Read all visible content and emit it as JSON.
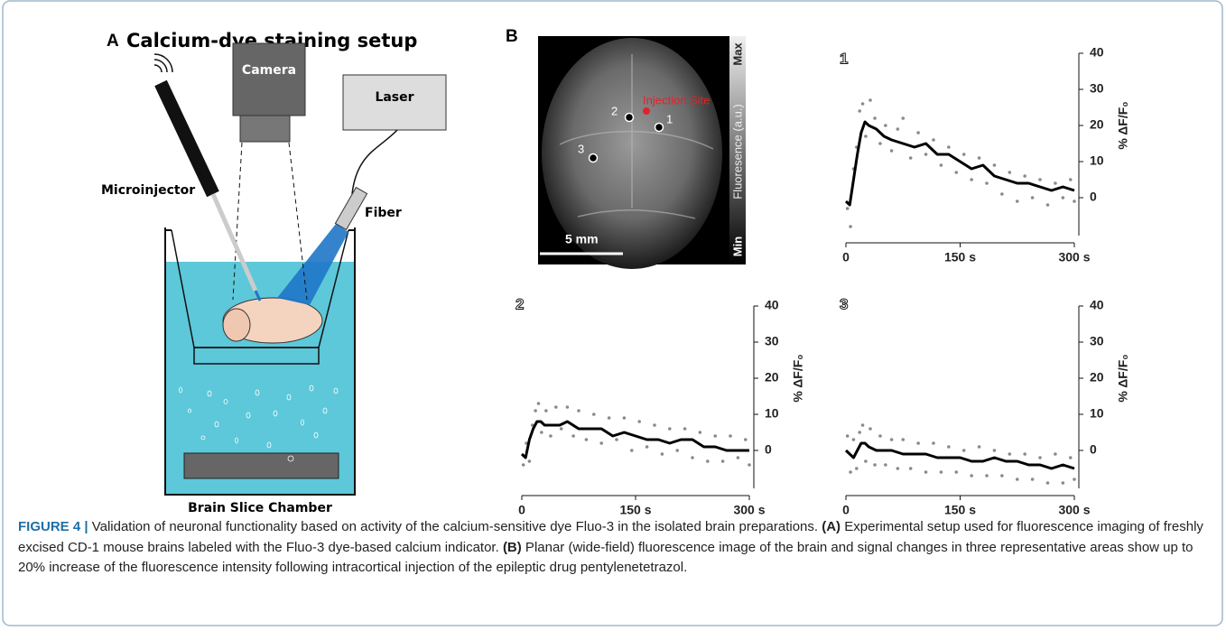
{
  "panel_a": {
    "letter": "A",
    "title": "Calcium-dye staining setup",
    "labels": {
      "camera": "Camera",
      "laser": "Laser",
      "microinjector": "Microinjector",
      "fiber": "Fiber",
      "chamber": "Brain Slice Chamber"
    }
  },
  "panel_b": {
    "letter": "B",
    "injection_site": "Injection Site",
    "points": [
      "1",
      "2",
      "3"
    ],
    "scale_bar": "5 mm",
    "colorbar": {
      "max": "Max",
      "label": "Fluoresence (a.u.)",
      "min": "Min"
    }
  },
  "caption": {
    "label": "FIGURE 4 |",
    "text0": " Validation of neuronal functionality based on activity of the calcium-sensitive dye Fluo-3 in the isolated brain preparations. ",
    "a": "(A)",
    "text1": " Experimental setup used for fluorescence imaging of freshly excised CD-1 mouse brains labeled with the Fluo-3 dye-based calcium indicator. ",
    "b": "(B)",
    "text2": " Planar (wide-field) fluorescence image of the brain and signal changes in three representative areas show up to 20% increase of the fluorescence intensity following intracortical injection of the epileptic drug pentylenetetrazol."
  },
  "chart_data": [
    {
      "type": "line",
      "title": "1",
      "ylabel": "% ΔF/F₀",
      "xlim": [
        0,
        300
      ],
      "ylim": [
        -12,
        40
      ],
      "xticks": [
        0,
        {
          "value": 150,
          "label": "150 s"
        },
        {
          "value": 300,
          "label": "300 s"
        }
      ],
      "yticks": [
        0,
        10,
        20,
        30,
        40
      ],
      "yaxis_side": "right",
      "series": [
        {
          "style": "dots",
          "color": "#8a8a8a",
          "x": [
            2,
            6,
            10,
            14,
            18,
            22,
            26,
            32,
            38,
            45,
            52,
            60,
            68,
            75,
            85,
            95,
            105,
            115,
            125,
            135,
            145,
            155,
            165,
            175,
            185,
            195,
            205,
            215,
            225,
            235,
            245,
            255,
            265,
            275,
            285,
            295,
            300
          ],
          "values": [
            -3,
            -8,
            8,
            14,
            24,
            26,
            17,
            27,
            22,
            15,
            20,
            13,
            19,
            22,
            11,
            18,
            12,
            16,
            9,
            14,
            7,
            12,
            5,
            11,
            4,
            9,
            1,
            7,
            -1,
            6,
            0,
            5,
            -2,
            4,
            0,
            5,
            -1
          ]
        },
        {
          "style": "line",
          "color": "#000000",
          "x": [
            0,
            5,
            10,
            15,
            20,
            25,
            30,
            40,
            50,
            60,
            75,
            90,
            105,
            120,
            135,
            150,
            165,
            180,
            195,
            210,
            225,
            240,
            255,
            270,
            285,
            300
          ],
          "values": [
            -1,
            -2,
            5,
            12,
            18,
            21,
            20,
            19,
            17,
            16,
            15,
            14,
            15,
            12,
            12,
            10,
            8,
            9,
            6,
            5,
            4,
            4,
            3,
            2,
            3,
            2
          ]
        }
      ]
    },
    {
      "type": "line",
      "title": "2",
      "ylabel": "% ΔF/F₀",
      "xlim": [
        0,
        300
      ],
      "ylim": [
        -12,
        40
      ],
      "xticks": [
        0,
        {
          "value": 150,
          "label": "150 s"
        },
        {
          "value": 300,
          "label": "300 s"
        }
      ],
      "yticks": [
        0,
        10,
        20,
        30,
        40
      ],
      "yaxis_side": "right",
      "series": [
        {
          "style": "dots",
          "color": "#8a8a8a",
          "x": [
            2,
            6,
            10,
            14,
            18,
            22,
            26,
            32,
            38,
            45,
            52,
            60,
            68,
            75,
            85,
            95,
            105,
            115,
            125,
            135,
            145,
            155,
            165,
            175,
            185,
            195,
            205,
            215,
            225,
            235,
            245,
            255,
            265,
            275,
            285,
            295,
            300
          ],
          "values": [
            -4,
            2,
            -3,
            7,
            11,
            13,
            5,
            11,
            4,
            12,
            6,
            12,
            4,
            11,
            3,
            10,
            2,
            9,
            3,
            9,
            0,
            8,
            1,
            7,
            -1,
            6,
            0,
            6,
            -2,
            5,
            -3,
            4,
            -3,
            4,
            -2,
            3,
            -4
          ]
        },
        {
          "style": "line",
          "color": "#000000",
          "x": [
            0,
            5,
            10,
            15,
            20,
            25,
            30,
            40,
            50,
            60,
            75,
            90,
            105,
            120,
            135,
            150,
            165,
            180,
            195,
            210,
            225,
            240,
            255,
            270,
            285,
            300
          ],
          "values": [
            -1,
            -2,
            3,
            6,
            8,
            8,
            7,
            7,
            7,
            8,
            6,
            6,
            6,
            4,
            5,
            4,
            3,
            3,
            2,
            3,
            3,
            1,
            1,
            0,
            0,
            0
          ]
        }
      ]
    },
    {
      "type": "line",
      "title": "3",
      "ylabel": "% ΔF/F₀",
      "xlim": [
        0,
        300
      ],
      "ylim": [
        -12,
        40
      ],
      "xticks": [
        0,
        {
          "value": 150,
          "label": "150 s"
        },
        {
          "value": 300,
          "label": "300 s"
        }
      ],
      "yticks": [
        0,
        10,
        20,
        30,
        40
      ],
      "yaxis_side": "right",
      "series": [
        {
          "style": "dots",
          "color": "#8a8a8a",
          "x": [
            2,
            6,
            10,
            14,
            18,
            22,
            26,
            32,
            38,
            45,
            52,
            60,
            68,
            75,
            85,
            95,
            105,
            115,
            125,
            135,
            145,
            155,
            165,
            175,
            185,
            195,
            205,
            215,
            225,
            235,
            245,
            255,
            265,
            275,
            285,
            295,
            300
          ],
          "values": [
            4,
            -6,
            3,
            -5,
            5,
            7,
            -3,
            6,
            -4,
            4,
            -4,
            3,
            -5,
            3,
            -5,
            2,
            -6,
            2,
            -6,
            1,
            -6,
            0,
            -7,
            1,
            -7,
            0,
            -7,
            -1,
            -8,
            -1,
            -8,
            -2,
            -9,
            -1,
            -9,
            -2,
            -8
          ]
        },
        {
          "style": "line",
          "color": "#000000",
          "x": [
            0,
            5,
            10,
            15,
            20,
            25,
            30,
            40,
            50,
            60,
            75,
            90,
            105,
            120,
            135,
            150,
            165,
            180,
            195,
            210,
            225,
            240,
            255,
            270,
            285,
            300
          ],
          "values": [
            0,
            -1,
            -2,
            0,
            2,
            2,
            1,
            0,
            0,
            0,
            -1,
            -1,
            -1,
            -2,
            -2,
            -2,
            -3,
            -3,
            -2,
            -3,
            -3,
            -4,
            -4,
            -5,
            -4,
            -5
          ]
        }
      ]
    }
  ]
}
